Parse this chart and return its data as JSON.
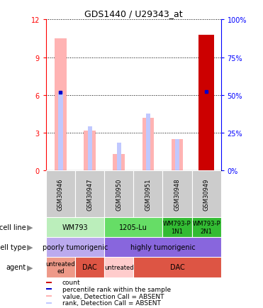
{
  "title": "GDS1440 / U29343_at",
  "samples": [
    "GSM30946",
    "GSM30947",
    "GSM30950",
    "GSM30951",
    "GSM30948",
    "GSM30949"
  ],
  "left_ylim": [
    0,
    12
  ],
  "right_ylim": [
    0,
    100
  ],
  "left_yticks": [
    0,
    3,
    6,
    9,
    12
  ],
  "right_yticks": [
    0,
    25,
    50,
    75,
    100
  ],
  "value_bars": [
    10.5,
    3.2,
    1.3,
    4.2,
    2.5,
    10.8
  ],
  "rank_bars": [
    6.2,
    3.5,
    2.2,
    4.5,
    2.5,
    6.3
  ],
  "count_bar_index": 5,
  "percentile_rank": [
    6.2,
    null,
    null,
    null,
    null,
    6.3
  ],
  "value_bar_color": "#FFB3B3",
  "rank_bar_color": "#C0C8FF",
  "count_bar_color": "#CC0000",
  "percentile_color": "#0000CC",
  "sample_bg_color": "#CCCCCC",
  "cell_line_row": {
    "label": "cell line",
    "groups": [
      {
        "text": "WM793",
        "span": [
          0,
          2
        ],
        "color": "#BBEEBB"
      },
      {
        "text": "1205-Lu",
        "span": [
          2,
          4
        ],
        "color": "#66DD66"
      },
      {
        "text": "WM793-P\n1N1",
        "span": [
          4,
          5
        ],
        "color": "#33BB33"
      },
      {
        "text": "WM793-P\n2N1",
        "span": [
          5,
          6
        ],
        "color": "#33BB33"
      }
    ]
  },
  "cell_type_row": {
    "label": "cell type",
    "groups": [
      {
        "text": "poorly tumorigenic",
        "span": [
          0,
          2
        ],
        "color": "#BBAAEE"
      },
      {
        "text": "highly tumorigenic",
        "span": [
          2,
          6
        ],
        "color": "#8866DD"
      }
    ]
  },
  "agent_row": {
    "label": "agent",
    "groups": [
      {
        "text": "untreated\ned",
        "span": [
          0,
          1
        ],
        "color": "#EE9988"
      },
      {
        "text": "DAC",
        "span": [
          1,
          2
        ],
        "color": "#DD5544"
      },
      {
        "text": "untreated",
        "span": [
          2,
          3
        ],
        "color": "#FFCCCC"
      },
      {
        "text": "DAC",
        "span": [
          3,
          6
        ],
        "color": "#DD5544"
      }
    ]
  },
  "legend_items": [
    {
      "color": "#CC0000",
      "label": "count"
    },
    {
      "color": "#0000CC",
      "label": "percentile rank within the sample"
    },
    {
      "color": "#FFB3B3",
      "label": "value, Detection Call = ABSENT"
    },
    {
      "color": "#C0C8FF",
      "label": "rank, Detection Call = ABSENT"
    }
  ]
}
